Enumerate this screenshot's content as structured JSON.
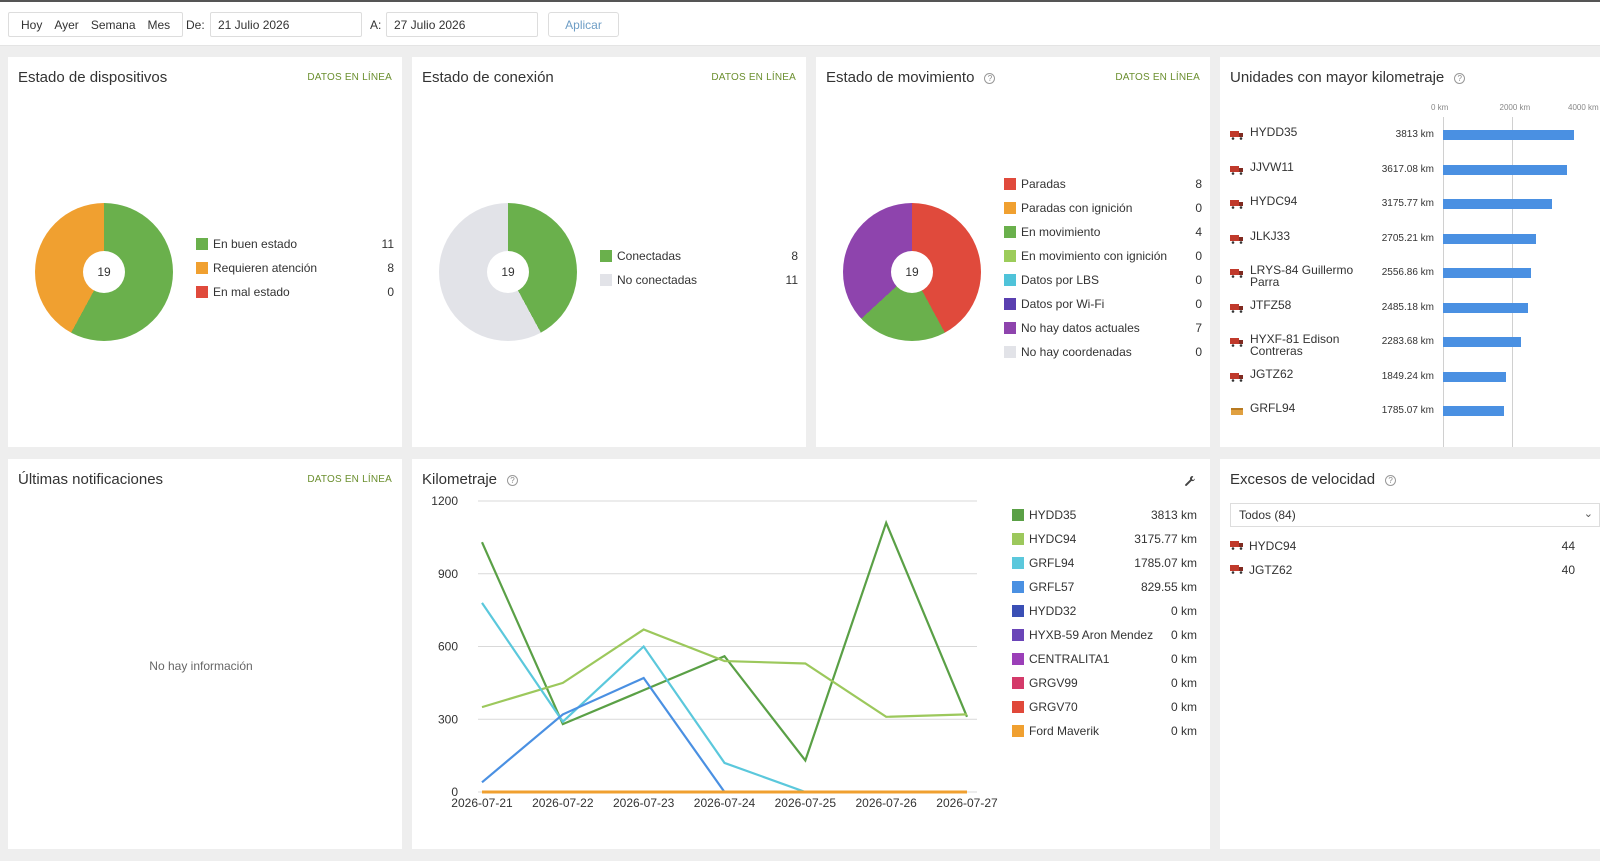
{
  "toolbar": {
    "quick": [
      "Hoy",
      "Ayer",
      "Semana",
      "Mes"
    ],
    "from_label": "De:",
    "from_value": "21 Julio 2026",
    "to_label": "A:",
    "to_value": "27 Julio 2026",
    "apply": "Aplicar"
  },
  "online_label": "DATOS EN LÍNEA",
  "devices": {
    "title": "Estado de dispositivos",
    "total": "19",
    "items": [
      {
        "label": "En buen estado",
        "count": "11",
        "color": "#6ab04c"
      },
      {
        "label": "Requieren atención",
        "count": "8",
        "color": "#f0a030"
      },
      {
        "label": "En mal estado",
        "count": "0",
        "color": "#e04a3c"
      }
    ]
  },
  "connection": {
    "title": "Estado de conexión",
    "total": "19",
    "items": [
      {
        "label": "Conectadas",
        "count": "8",
        "color": "#6ab04c"
      },
      {
        "label": "No conectadas",
        "count": "11",
        "color": "#e2e3e8"
      }
    ]
  },
  "movement": {
    "title": "Estado de movimiento",
    "total": "19",
    "items": [
      {
        "label": "Paradas",
        "count": "8",
        "color": "#e04a3c"
      },
      {
        "label": "Paradas con ignición",
        "count": "0",
        "color": "#f0a030"
      },
      {
        "label": "En movimiento",
        "count": "4",
        "color": "#6ab04c"
      },
      {
        "label": "En movimiento con ignición",
        "count": "0",
        "color": "#9ccc5a"
      },
      {
        "label": "Datos por LBS",
        "count": "0",
        "color": "#4fc3d9"
      },
      {
        "label": "Datos por Wi-Fi",
        "count": "0",
        "color": "#5a3fb0"
      },
      {
        "label": "No hay datos actuales",
        "count": "7",
        "color": "#8e44ad"
      },
      {
        "label": "No hay coordenadas",
        "count": "0",
        "color": "#e2e3e8"
      }
    ]
  },
  "mileage_units": {
    "title": "Unidades con mayor kilometraje",
    "axis": [
      "0 km",
      "2000 km",
      "4000 km"
    ],
    "axis_max": 4000,
    "units": [
      {
        "name": "HYDD35",
        "value": "3813 km",
        "km": 3813,
        "icon": "truck-red-icon"
      },
      {
        "name": "JJVW11",
        "value": "3617.08 km",
        "km": 3617.08,
        "icon": "truck-red-icon"
      },
      {
        "name": "HYDC94",
        "value": "3175.77 km",
        "km": 3175.77,
        "icon": "truck-red-icon"
      },
      {
        "name": "JLKJ33",
        "value": "2705.21 km",
        "km": 2705.21,
        "icon": "truck-red-icon"
      },
      {
        "name": "LRYS-84 Guillermo Parra",
        "value": "2556.86 km",
        "km": 2556.86,
        "icon": "truck-red-icon"
      },
      {
        "name": "JTFZ58",
        "value": "2485.18 km",
        "km": 2485.18,
        "icon": "truck-red-icon"
      },
      {
        "name": "HYXF-81 Edison Contreras",
        "value": "2283.68 km",
        "km": 2283.68,
        "icon": "truck-red-icon"
      },
      {
        "name": "JGTZ62",
        "value": "1849.24 km",
        "km": 1849.24,
        "icon": "truck-red-icon"
      },
      {
        "name": "GRFL94",
        "value": "1785.07 km",
        "km": 1785.07,
        "icon": "box-orange-icon"
      }
    ]
  },
  "notifications": {
    "title": "Últimas notificaciones",
    "empty": "No hay información"
  },
  "kilometraje": {
    "title": "Kilometraje",
    "legend": [
      {
        "name": "HYDD35",
        "value": "3813 km",
        "color": "#5aa046"
      },
      {
        "name": "HYDC94",
        "value": "3175.77 km",
        "color": "#9cc85c"
      },
      {
        "name": "GRFL94",
        "value": "1785.07 km",
        "color": "#5bc8dc"
      },
      {
        "name": "GRFL57",
        "value": "829.55 km",
        "color": "#4a90e2"
      },
      {
        "name": "HYDD32",
        "value": "0 km",
        "color": "#3a4fb5"
      },
      {
        "name": "HYXB-59 Aron Mendez",
        "value": "0 km",
        "color": "#6a45b8"
      },
      {
        "name": "CENTRALITA1",
        "value": "0 km",
        "color": "#9b3fb8"
      },
      {
        "name": "GRGV99",
        "value": "0 km",
        "color": "#d43a6a"
      },
      {
        "name": "GRGV70",
        "value": "0 km",
        "color": "#e0483a"
      },
      {
        "name": "Ford Maverik",
        "value": "0 km",
        "color": "#f0a030"
      }
    ]
  },
  "chart_data": {
    "type": "line",
    "x": [
      "2026-07-21",
      "2026-07-22",
      "2026-07-23",
      "2026-07-24",
      "2026-07-25",
      "2026-07-26",
      "2026-07-27"
    ],
    "ylim": [
      0,
      1200
    ],
    "yticks": [
      "0",
      "300",
      "600",
      "900",
      "1200"
    ],
    "grid": true,
    "series": [
      {
        "name": "HYDD35",
        "color": "#5aa046",
        "values": [
          1030,
          280,
          420,
          560,
          130,
          1110,
          310
        ]
      },
      {
        "name": "HYDC94",
        "color": "#9cc85c",
        "values": [
          350,
          450,
          670,
          540,
          530,
          310,
          320
        ]
      },
      {
        "name": "GRFL94",
        "color": "#5bc8dc",
        "values": [
          780,
          290,
          600,
          120,
          0,
          0,
          0
        ]
      },
      {
        "name": "GRFL57",
        "color": "#4a90e2",
        "values": [
          40,
          320,
          470,
          0,
          0,
          0,
          0
        ]
      },
      {
        "name": "Ford Maverik",
        "color": "#f0a030",
        "values": [
          0,
          0,
          0,
          0,
          0,
          0,
          0
        ]
      }
    ]
  },
  "speeding": {
    "title": "Excesos de velocidad",
    "filter": "Todos (84)",
    "items": [
      {
        "name": "HYDC94",
        "count": "44"
      },
      {
        "name": "JGTZ62",
        "count": "40"
      }
    ]
  }
}
